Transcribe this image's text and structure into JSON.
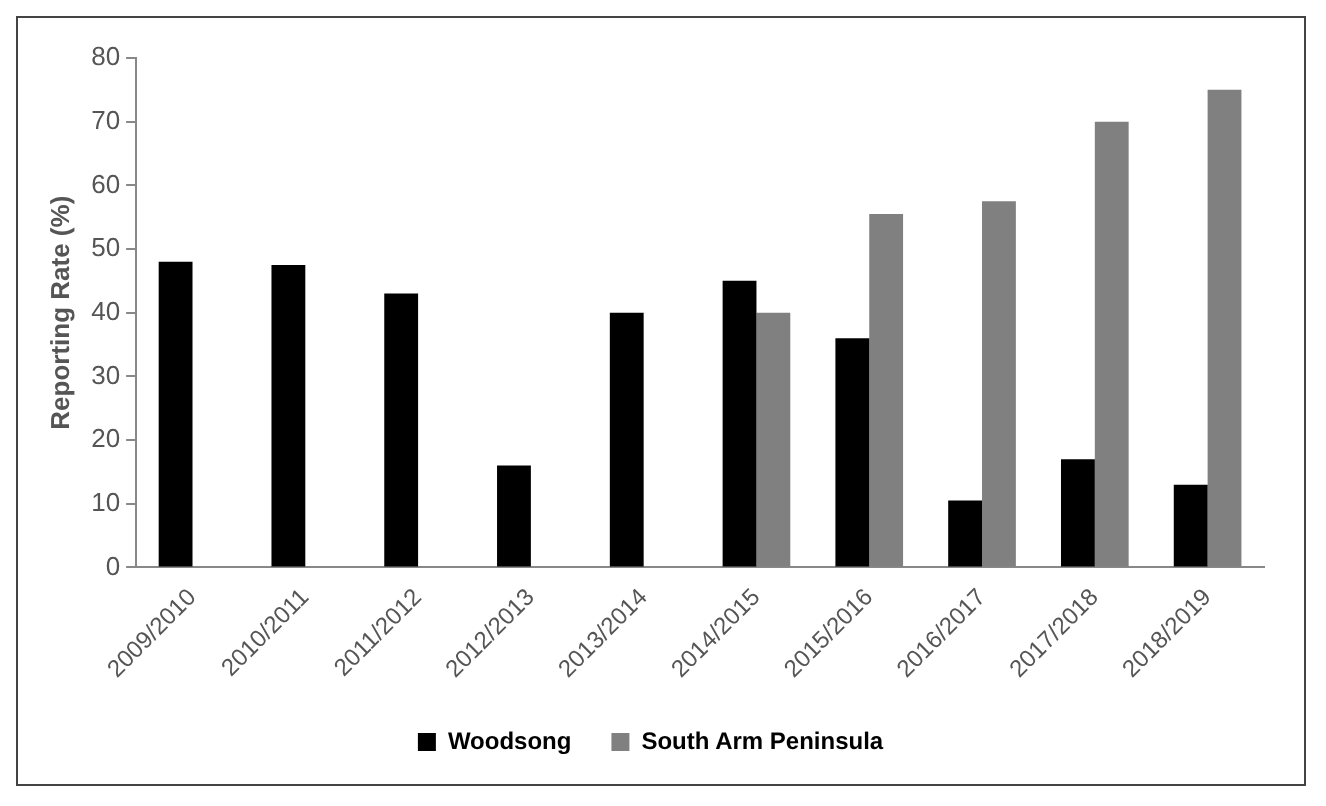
{
  "chart_data": {
    "type": "bar",
    "ylabel": "Reporting Rate (%)",
    "categories": [
      "2009/2010",
      "2010/2011",
      "2011/2012",
      "2012/2013",
      "2013/2014",
      "2014/2015",
      "2015/2016",
      "2016/2017",
      "2017/2018",
      "2018/2019"
    ],
    "series": [
      {
        "name": "Woodsong",
        "color": "#000000",
        "values": [
          48,
          47.5,
          43,
          16,
          40,
          45,
          36,
          10.5,
          17,
          13
        ]
      },
      {
        "name": "South Arm Peninsula",
        "color": "#808080",
        "values": [
          null,
          null,
          null,
          null,
          null,
          40,
          55.5,
          57.5,
          70,
          75
        ]
      }
    ],
    "ylim": [
      0,
      80
    ],
    "yticks": [
      0,
      10,
      20,
      30,
      40,
      50,
      60,
      70,
      80
    ],
    "grid": false,
    "legend": "bottom"
  }
}
